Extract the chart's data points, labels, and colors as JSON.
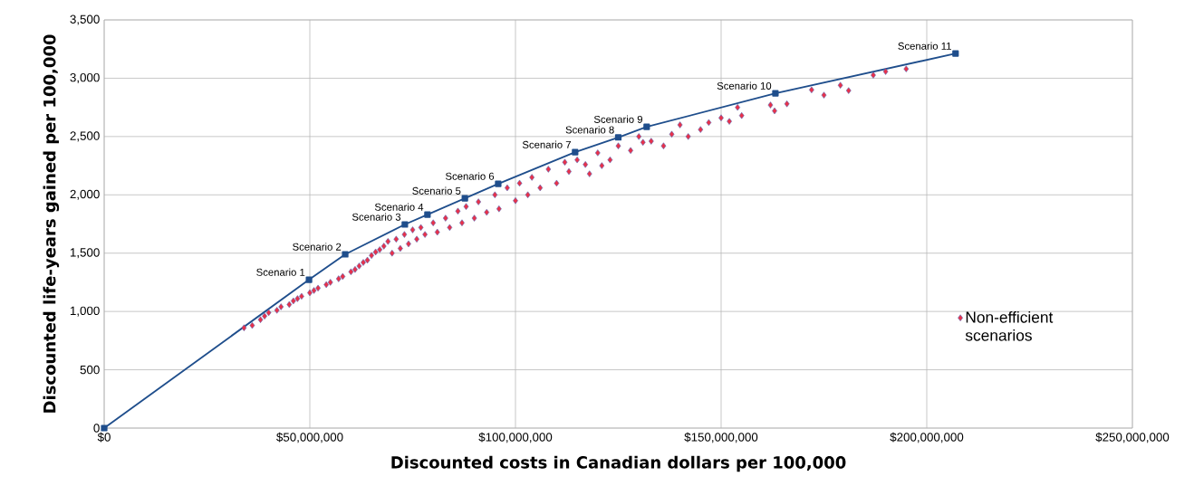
{
  "chart_data": {
    "type": "scatter",
    "xlabel": "Discounted costs in Canadian dollars per 100,000",
    "ylabel": "Discounted life-years gained per 100,000",
    "xlim": [
      0,
      250000000
    ],
    "ylim": [
      0,
      3500
    ],
    "xticks": [
      {
        "value": 0,
        "label": "$0"
      },
      {
        "value": 50000000,
        "label": "$50,000,000"
      },
      {
        "value": 100000000,
        "label": "$100,000,000"
      },
      {
        "value": 150000000,
        "label": "$150,000,000"
      },
      {
        "value": 200000000,
        "label": "$200,000,000"
      },
      {
        "value": 250000000,
        "label": "$250,000,000"
      }
    ],
    "yticks": [
      0,
      500,
      {
        "value": 1000,
        "label": "1,000"
      },
      {
        "value": 1500,
        "label": "1,500"
      },
      {
        "value": 2000,
        "label": "2,000"
      },
      {
        "value": 2500,
        "label": "2,500"
      },
      {
        "value": 3000,
        "label": "3,000"
      },
      {
        "value": 3500,
        "label": "3,500"
      }
    ],
    "grid": true,
    "legend": "right",
    "series": [
      {
        "type": "line",
        "color": "#1f4e8c",
        "marker": "square",
        "line_style": "solid",
        "x": [
          0,
          49800000,
          58600000,
          73100000,
          78600000,
          87700000,
          95800000,
          114500000,
          125000000,
          131900000,
          163200000,
          207000000
        ],
        "values": [
          0,
          1272,
          1490,
          1746,
          1831,
          1970,
          2095,
          2366,
          2493,
          2583,
          2870,
          3212
        ]
      },
      {
        "name": "Non-efficient scenarios",
        "color": "#e8314a",
        "marker": "diamond",
        "x": [
          34000000,
          36000000,
          38000000,
          39000000,
          40000000,
          42000000,
          43000000,
          45000000,
          46000000,
          47000000,
          48000000,
          50000000,
          51000000,
          52000000,
          54000000,
          55000000,
          57000000,
          58000000,
          60000000,
          61000000,
          62000000,
          63000000,
          64000000,
          65000000,
          66000000,
          67000000,
          68000000,
          69000000,
          70000000,
          71000000,
          72000000,
          73000000,
          74000000,
          75000000,
          76000000,
          77000000,
          78000000,
          80000000,
          81000000,
          83000000,
          84000000,
          86000000,
          87000000,
          88000000,
          90000000,
          91000000,
          93000000,
          95000000,
          96000000,
          98000000,
          100000000,
          101000000,
          103000000,
          104000000,
          106000000,
          108000000,
          110000000,
          112000000,
          113000000,
          115000000,
          117000000,
          118000000,
          120000000,
          121000000,
          123000000,
          125000000,
          128000000,
          130000000,
          131000000,
          133000000,
          136000000,
          138000000,
          140000000,
          142000000,
          145000000,
          147000000,
          150000000,
          152000000,
          154000000,
          155000000,
          162000000,
          163000000,
          166000000,
          172000000,
          175000000,
          179000000,
          181000000,
          187000000,
          190000000,
          195000000
        ],
        "values": [
          860,
          880,
          930,
          960,
          990,
          1010,
          1040,
          1060,
          1090,
          1110,
          1130,
          1160,
          1180,
          1200,
          1230,
          1250,
          1280,
          1300,
          1340,
          1360,
          1390,
          1420,
          1440,
          1480,
          1510,
          1530,
          1560,
          1600,
          1500,
          1620,
          1540,
          1660,
          1580,
          1700,
          1620,
          1720,
          1660,
          1760,
          1680,
          1800,
          1720,
          1860,
          1760,
          1900,
          1800,
          1940,
          1850,
          2000,
          1880,
          2060,
          1950,
          2100,
          2000,
          2150,
          2060,
          2220,
          2100,
          2280,
          2200,
          2300,
          2260,
          2180,
          2360,
          2250,
          2300,
          2420,
          2380,
          2500,
          2450,
          2460,
          2420,
          2520,
          2600,
          2500,
          2560,
          2620,
          2660,
          2630,
          2750,
          2680,
          2770,
          2720,
          2780,
          2900,
          2855,
          2940,
          2894,
          3026,
          3057,
          3080
        ]
      }
    ],
    "annotations": [
      {
        "text": "Scenario 1",
        "x": 49800000,
        "y": 1272
      },
      {
        "text": "Scenario 2",
        "x": 58600000,
        "y": 1490
      },
      {
        "text": "Scenario 3",
        "x": 73100000,
        "y": 1746
      },
      {
        "text": "Scenario 4",
        "x": 78600000,
        "y": 1831
      },
      {
        "text": "Scenario 5",
        "x": 87700000,
        "y": 1970
      },
      {
        "text": "Scenario 6",
        "x": 95800000,
        "y": 2095
      },
      {
        "text": "Scenario 7",
        "x": 114500000,
        "y": 2366
      },
      {
        "text": "Scenario 8",
        "x": 125000000,
        "y": 2493
      },
      {
        "text": "Scenario 9",
        "x": 131900000,
        "y": 2583
      },
      {
        "text": "Scenario 10",
        "x": 163200000,
        "y": 2870
      },
      {
        "text": "Scenario 11",
        "x": 207000000,
        "y": 3212
      }
    ]
  }
}
